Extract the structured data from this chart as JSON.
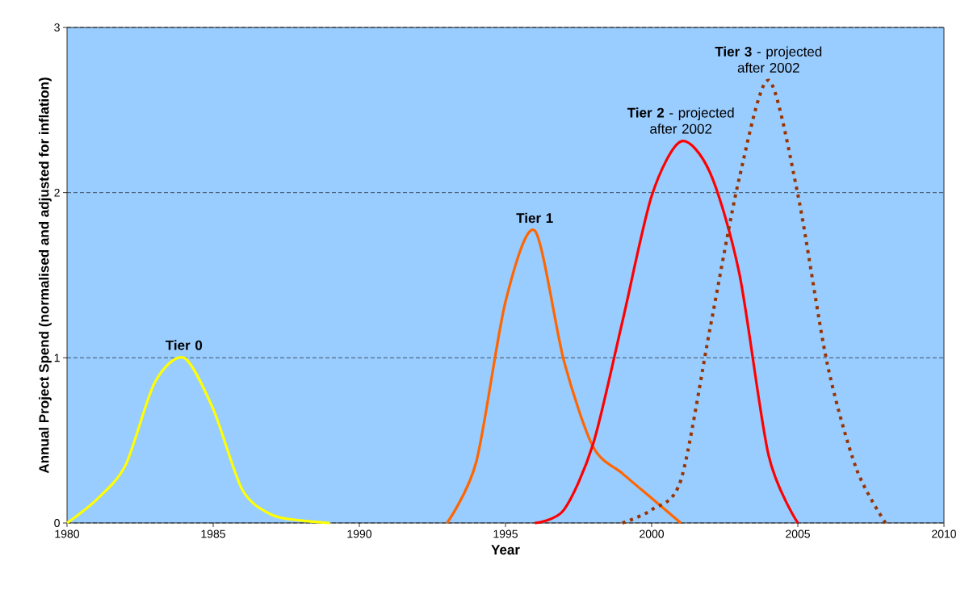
{
  "chart_data": {
    "type": "line",
    "xlabel": "Year",
    "ylabel": "Annual Project Spend (normalised and adjusted for inflation)",
    "xlim": [
      1980,
      2010
    ],
    "ylim": [
      0,
      3
    ],
    "xticks": [
      1980,
      1985,
      1990,
      1995,
      2000,
      2005,
      2010
    ],
    "yticks": [
      0,
      1,
      2,
      3
    ],
    "grid": "y",
    "marker": "none",
    "series": [
      {
        "x": [
          1980,
          1981,
          1982,
          1983,
          1984,
          1985,
          1986,
          1987,
          1988,
          1989
        ],
        "values": [
          0,
          0.14,
          0.35,
          0.85,
          1.0,
          0.69,
          0.2,
          0.05,
          0.015,
          0
        ],
        "color": "#ffff00",
        "line_style": "solid"
      },
      {
        "x": [
          1993,
          1994,
          1995,
          1996,
          1997,
          1998,
          1999,
          2000,
          2001
        ],
        "values": [
          0,
          0.37,
          1.34,
          1.77,
          0.98,
          0.46,
          0.3,
          0.15,
          0
        ],
        "color": "#ff6600",
        "line_style": "solid"
      },
      {
        "x": [
          1996,
          1997,
          1998,
          1999,
          2000,
          2001,
          2002,
          2003,
          2004,
          2005
        ],
        "values": [
          0,
          0.08,
          0.48,
          1.22,
          1.98,
          2.31,
          2.12,
          1.51,
          0.41,
          0
        ],
        "color": "#ff0000",
        "line_style": "solid"
      },
      {
        "x": [
          1999,
          2000,
          2001,
          2002,
          2003,
          2004,
          2005,
          2006,
          2007,
          2008
        ],
        "values": [
          0,
          0.08,
          0.26,
          1.18,
          2.09,
          2.68,
          1.99,
          0.97,
          0.33,
          0
        ],
        "color": "#993300",
        "line_style": "dotted"
      }
    ],
    "annotations": [
      {
        "text": "**Tier 0**",
        "x": 1984,
        "y": 1.0
      },
      {
        "text": "**Tier 1**",
        "x": 1996,
        "y": 1.77
      },
      {
        "text": "**Tier 2** - projected after 2002",
        "x": 2001,
        "y": 2.31
      },
      {
        "text": "**Tier 3** - projected after 2002",
        "x": 2004,
        "y": 2.68
      }
    ]
  }
}
